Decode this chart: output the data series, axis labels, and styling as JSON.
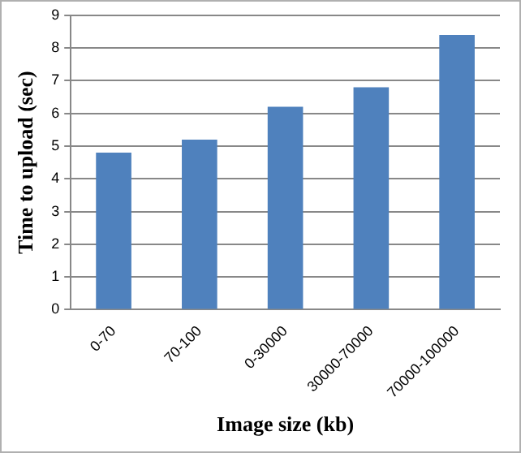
{
  "chart_data": {
    "type": "bar",
    "xlabel": "Image size (kb)",
    "ylabel": "Time to upload (sec)",
    "categories": [
      "0-70",
      "70-100",
      "0-30000",
      "30000-70000",
      "70000-100000"
    ],
    "values": [
      4.8,
      5.2,
      6.2,
      6.8,
      8.4
    ],
    "color": "#4f81bd",
    "ylim": [
      0,
      9
    ],
    "yticks": [
      0,
      1,
      2,
      3,
      4,
      5,
      6,
      7,
      8,
      9
    ],
    "grid": "y",
    "legend": false
  }
}
